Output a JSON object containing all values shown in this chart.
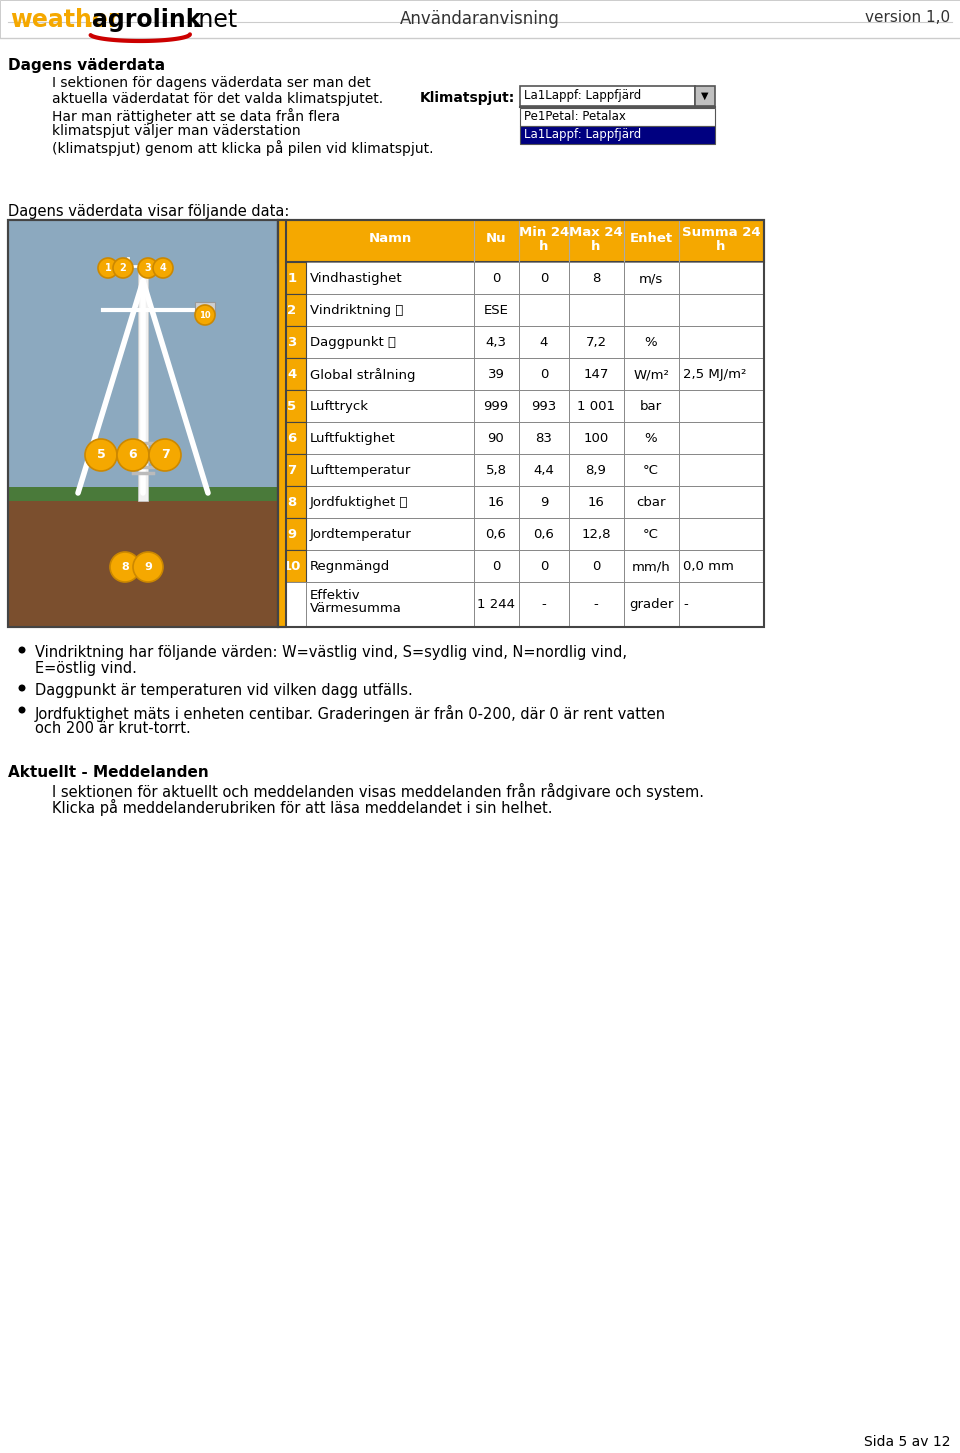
{
  "header_center": "Användaranvisning",
  "header_right": "version 1,0",
  "page_bg": "#FFFFFF",
  "section1_title": "Dagens väderdata",
  "section1_body_lines": [
    "I sektionen för dagens väderdata ser man det",
    "aktuella väderdatat för det valda klimatspjutet.",
    "Har man rättigheter att se data från flera",
    "klimatspjut väljer man väderstation",
    "(klimatspjut) genom att klicka på pilen vid klimatspjut."
  ],
  "daily_intro": "Dagens väderdata visar följande data:",
  "table_header_bg": "#F5A800",
  "table_number_bg": "#F5A800",
  "col_headers": [
    "Namn",
    "Nu",
    "Min 24\nh",
    "Max 24\nh",
    "Enhet",
    "Summa 24\nh"
  ],
  "rows": [
    [
      "1",
      "Vindhastighet",
      "0",
      "0",
      "8",
      "m/s",
      ""
    ],
    [
      "2",
      "Vindriktning ⓘ",
      "ESE",
      "",
      "",
      "",
      ""
    ],
    [
      "3",
      "Daggpunkt ⓘ",
      "4,3",
      "4",
      "7,2",
      "%",
      ""
    ],
    [
      "4",
      "Global strålning",
      "39",
      "0",
      "147",
      "W/m²",
      "2,5 MJ/m²"
    ],
    [
      "5",
      "Lufttryck",
      "999",
      "993",
      "1 001",
      "bar",
      ""
    ],
    [
      "6",
      "Luftfuktighet",
      "90",
      "83",
      "100",
      "%",
      ""
    ],
    [
      "7",
      "Lufttemperatur",
      "5,8",
      "4,4",
      "8,9",
      "°C",
      ""
    ],
    [
      "8",
      "Jordfuktighet ⓘ",
      "16",
      "9",
      "16",
      "cbar",
      ""
    ],
    [
      "9",
      "Jordtemperatur",
      "0,6",
      "0,6",
      "12,8",
      "°C",
      ""
    ],
    [
      "10",
      "Regnmängd",
      "0",
      "0",
      "0",
      "mm/h",
      "0,0 mm"
    ],
    [
      "",
      "Effektiv\nVärmesumma",
      "1 244",
      "-",
      "-",
      "grader",
      "-"
    ]
  ],
  "bullet_points": [
    [
      "Vindriktning har följande värden: W=västlig vind, S=sydlig vind, N=nordlig vind,",
      "E=östlig vind."
    ],
    [
      "Daggpunkt är temperaturen vid vilken dagg utfälls."
    ],
    [
      "Jordfuktighet mäts i enheten centibar. Graderingen är från 0-200, där 0 är rent vatten",
      "och 200 är krut-torrt."
    ]
  ],
  "section2_title": "Aktuellt - Meddelanden",
  "section2_body_lines": [
    "I sektionen för aktuellt och meddelanden visas meddelanden från rådgivare och system.",
    "Klicka på meddelanderubriken för att läsa meddelandet i sin helhet."
  ],
  "footer_text": "Sida 5 av 12",
  "klimatspjut_label": "Klimatspjut:",
  "dropdown_main": "La1Lappf: Lappfjärd",
  "dropdown_list": [
    "Pe1Petal: Petalax",
    "La1Lappf: Lappfjärd"
  ],
  "image_bg": "#8CA9BF",
  "image_ground_bg": "#7B4F2E",
  "yellow_circle": "#F5A800",
  "green_ground": "#4A7A3A"
}
